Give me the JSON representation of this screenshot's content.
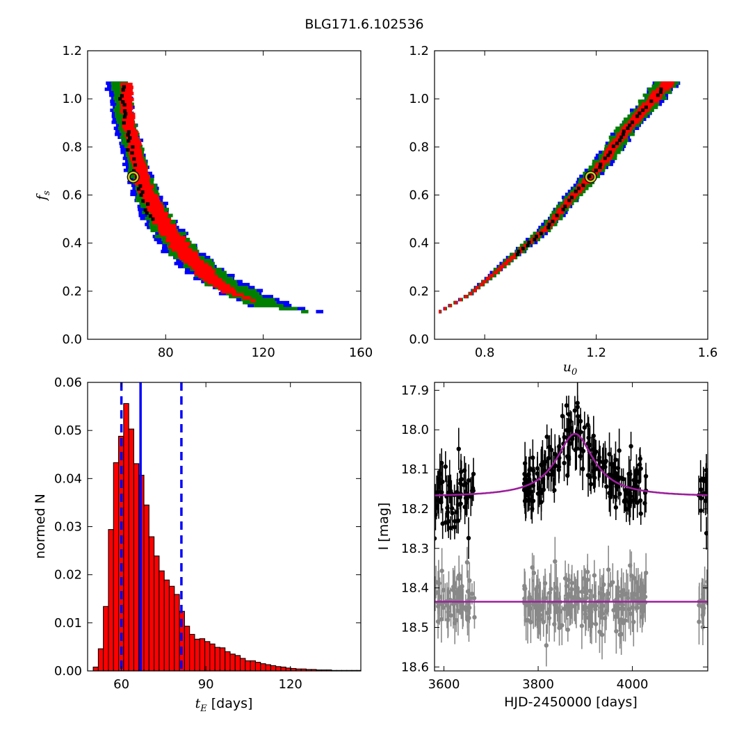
{
  "figure": {
    "title": "BLG171.6.102536"
  },
  "chart_data": [
    {
      "id": "tE-fs",
      "type": "heatmap",
      "title": "",
      "xlabel": "",
      "ylabel": "f_s",
      "ylabel_parts": {
        "main": "f",
        "sub": "s"
      },
      "xlim": [
        48,
        160
      ],
      "ylim": [
        0.0,
        1.2
      ],
      "xticks": [
        80,
        120,
        160
      ],
      "xtick_labels": [
        "80",
        "120",
        "160"
      ],
      "yticks": [
        0.0,
        0.2,
        0.4,
        0.6,
        0.8,
        1.0,
        1.2
      ],
      "ytick_labels": [
        "0.0",
        "0.2",
        "0.4",
        "0.6",
        "0.8",
        "1.0",
        "1.2"
      ],
      "levels": [
        {
          "level": "blue",
          "color": "#0000ff",
          "centerline": [
            [
              60,
              1.07
            ],
            [
              63,
              0.92
            ],
            [
              67,
              0.76
            ],
            [
              71,
              0.62
            ],
            [
              78,
              0.48
            ],
            [
              88,
              0.35
            ],
            [
              102,
              0.24
            ],
            [
              122,
              0.14
            ],
            [
              143,
              0.115
            ]
          ],
          "width": [
            9,
            9,
            9,
            11,
            13,
            15,
            17,
            18,
            3
          ]
        },
        {
          "level": "green",
          "color": "#008000",
          "centerline": [
            [
              61,
              1.07
            ],
            [
              63.5,
              0.92
            ],
            [
              67.5,
              0.76
            ],
            [
              71.5,
              0.62
            ],
            [
              78.5,
              0.48
            ],
            [
              88.5,
              0.35
            ],
            [
              102,
              0.24
            ],
            [
              120,
              0.145
            ],
            [
              137,
              0.115
            ]
          ],
          "width": [
            7,
            7.5,
            7.5,
            9,
            11,
            12.5,
            13.5,
            14,
            3
          ]
        },
        {
          "level": "red",
          "color": "#ff0000",
          "centerline": [
            [
              63.5,
              1.07
            ],
            [
              64.5,
              0.92
            ],
            [
              68,
              0.76
            ],
            [
              72,
              0.62
            ],
            [
              79,
              0.48
            ],
            [
              88,
              0.36
            ],
            [
              97,
              0.27
            ],
            [
              106,
              0.2
            ],
            [
              116,
              0.16
            ]
          ],
          "width": [
            5,
            5,
            5.5,
            6.5,
            7.5,
            8.5,
            8.5,
            6.5,
            2
          ]
        },
        {
          "level": "black",
          "color": "#000000",
          "centerline": [
            [
              62,
              1.07
            ],
            [
              63,
              0.92
            ],
            [
              66,
              0.78
            ],
            [
              69,
              0.64
            ],
            [
              74,
              0.5
            ]
          ],
          "width": [
            1.5,
            1.5,
            1.5,
            1,
            1
          ]
        }
      ],
      "best_fit": {
        "x": 66.7,
        "y": 0.675
      }
    },
    {
      "id": "u0-fs",
      "type": "heatmap",
      "title": "",
      "xlabel": "u_0",
      "xlabel_parts": {
        "main": "u",
        "sub": "0"
      },
      "ylabel": "",
      "xlim": [
        0.62,
        1.6
      ],
      "ylim": [
        0.0,
        1.2
      ],
      "xticks": [
        0.8,
        1.2,
        1.6
      ],
      "xtick_labels": [
        "0.8",
        "1.2",
        "1.6"
      ],
      "yticks": [
        0.0,
        0.2,
        0.4,
        0.6,
        0.8,
        1.0,
        1.2
      ],
      "ytick_labels": [
        "0.0",
        "0.2",
        "0.4",
        "0.6",
        "0.8",
        "1.0",
        "1.2"
      ],
      "levels": [
        {
          "level": "blue",
          "color": "#0000ff",
          "centerline": [
            [
              0.64,
              0.115
            ],
            [
              0.75,
              0.19
            ],
            [
              0.9,
              0.34
            ],
            [
              1.02,
              0.46
            ],
            [
              1.12,
              0.6
            ],
            [
              1.22,
              0.73
            ],
            [
              1.3,
              0.86
            ],
            [
              1.39,
              0.98
            ],
            [
              1.46,
              1.07
            ]
          ],
          "width": [
            0.01,
            0.02,
            0.04,
            0.05,
            0.06,
            0.07,
            0.075,
            0.08,
            0.1
          ]
        },
        {
          "level": "green",
          "color": "#008000",
          "centerline": [
            [
              0.64,
              0.115
            ],
            [
              0.75,
              0.19
            ],
            [
              0.9,
              0.34
            ],
            [
              1.02,
              0.46
            ],
            [
              1.12,
              0.6
            ],
            [
              1.22,
              0.73
            ],
            [
              1.3,
              0.86
            ],
            [
              1.39,
              0.98
            ],
            [
              1.46,
              1.07
            ]
          ],
          "width": [
            0.01,
            0.018,
            0.035,
            0.045,
            0.055,
            0.065,
            0.07,
            0.075,
            0.09
          ]
        },
        {
          "level": "red",
          "color": "#ff0000",
          "centerline": [
            [
              0.64,
              0.115
            ],
            [
              0.75,
              0.19
            ],
            [
              0.9,
              0.34
            ],
            [
              1.02,
              0.46
            ],
            [
              1.12,
              0.6
            ],
            [
              1.22,
              0.73
            ],
            [
              1.3,
              0.86
            ],
            [
              1.39,
              0.98
            ],
            [
              1.46,
              1.07
            ]
          ],
          "width": [
            0.008,
            0.012,
            0.02,
            0.025,
            0.03,
            0.035,
            0.04,
            0.045,
            0.05
          ]
        },
        {
          "level": "black",
          "color": "#000000",
          "centerline": [
            [
              0.9,
              0.34
            ],
            [
              1.02,
              0.46
            ],
            [
              1.12,
              0.6
            ],
            [
              1.22,
              0.73
            ],
            [
              1.3,
              0.86
            ],
            [
              1.39,
              0.98
            ],
            [
              1.46,
              1.07
            ]
          ],
          "width": [
            0.005,
            0.005,
            0.005,
            0.005,
            0.005,
            0.005,
            0.005
          ]
        }
      ],
      "best_fit": {
        "x": 1.18,
        "y": 0.675
      }
    },
    {
      "id": "tE-hist",
      "type": "bar",
      "title": "",
      "xlabel": "t_E [days]",
      "xlabel_parts": {
        "main": "t",
        "sub": "E",
        "rest": " [days]"
      },
      "ylabel": "normed N",
      "xlim": [
        48,
        145
      ],
      "ylim": [
        0.0,
        0.06
      ],
      "xticks": [
        60,
        90,
        120
      ],
      "xtick_labels": [
        "60",
        "90",
        "120"
      ],
      "yticks": [
        0.0,
        0.01,
        0.02,
        0.03,
        0.04,
        0.05,
        0.06
      ],
      "ytick_labels": [
        "0.00",
        "0.01",
        "0.02",
        "0.03",
        "0.04",
        "0.05",
        "0.06"
      ],
      "bin_start": 50,
      "bin_width": 1.8,
      "values": [
        0.0008,
        0.0046,
        0.0134,
        0.0294,
        0.0433,
        0.0488,
        0.0556,
        0.0503,
        0.0431,
        0.0407,
        0.0345,
        0.0279,
        0.0239,
        0.0208,
        0.0189,
        0.0176,
        0.0159,
        0.0124,
        0.0093,
        0.0076,
        0.0066,
        0.0067,
        0.0061,
        0.0056,
        0.0049,
        0.0048,
        0.004,
        0.0035,
        0.0032,
        0.0026,
        0.0021,
        0.0021,
        0.0018,
        0.0015,
        0.0013,
        0.0011,
        0.0009,
        0.0008,
        0.0006,
        0.0005,
        0.0004,
        0.0004,
        0.0003,
        0.0003,
        0.0002,
        0.0002,
        0.0002,
        0.0001,
        0.0001,
        0.0001,
        0.0001,
        0.0001,
        0.0001
      ],
      "bar_color": "#ff0000",
      "median": 66.8,
      "lower": 60.0,
      "upper": 81.3,
      "line_color": "#0000ff"
    },
    {
      "id": "lightcurve",
      "type": "scatter",
      "title": "",
      "xlabel": "HJD-2450000 [days]",
      "ylabel": "I [mag]",
      "xlim": [
        3580,
        4160
      ],
      "ylim": [
        18.61,
        17.88
      ],
      "y_inverted": true,
      "xticks": [
        3600,
        3800,
        4000
      ],
      "xtick_labels": [
        "3600",
        "3800",
        "4000"
      ],
      "yticks": [
        17.9,
        18.0,
        18.1,
        18.2,
        18.3,
        18.4,
        18.5,
        18.6
      ],
      "ytick_labels": [
        "17.9",
        "18.0",
        "18.1",
        "18.2",
        "18.3",
        "18.4",
        "18.5",
        "18.6"
      ],
      "series": [
        {
          "color": "#000000",
          "baseline": 18.17,
          "amplitude": 0.16,
          "peak_t": 3878,
          "width": 55,
          "scatter": 0.04,
          "err": 0.04
        },
        {
          "color": "#888888",
          "baseline": 18.435,
          "amplitude": 0.0,
          "peak_t": 3878,
          "width": 55,
          "scatter": 0.035,
          "err": 0.045
        }
      ],
      "observing_seasons": [
        [
          3580,
          3665
        ],
        [
          3770,
          4030
        ],
        [
          4140,
          4160
        ]
      ],
      "model_color": "#9b1f9b"
    }
  ]
}
